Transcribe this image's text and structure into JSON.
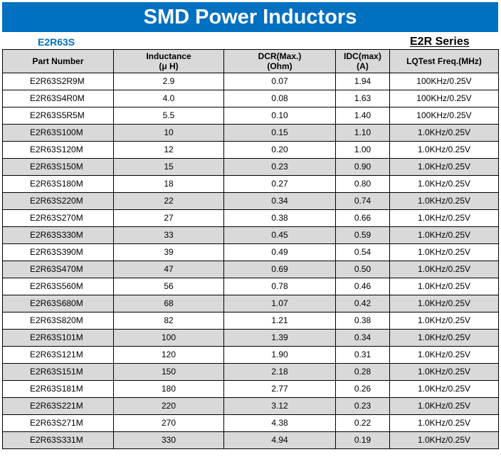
{
  "title": "SMD Power Inductors",
  "model": "E2R63S",
  "series": "E2R Series",
  "columns": [
    {
      "line1": "Part Number",
      "line2": ""
    },
    {
      "line1": "Inductance",
      "line2": "(μ H)"
    },
    {
      "line1": "DCR(Max.)",
      "line2": "(Ohm)"
    },
    {
      "line1": "IDC(max)",
      "line2": "(A)"
    },
    {
      "line1": "LQTest Freq.(MHz)",
      "line2": ""
    }
  ],
  "rows": [
    {
      "part": "E2R63S2R9M",
      "inductance": "2.9",
      "dcr": "0.07",
      "idc": "1.94",
      "freq": "100KHz/0.25V"
    },
    {
      "part": "E2R63S4R0M",
      "inductance": "4.0",
      "dcr": "0.08",
      "idc": "1.63",
      "freq": "100KHz/0.25V"
    },
    {
      "part": "E2R63S5R5M",
      "inductance": "5.5",
      "dcr": "0.10",
      "idc": "1.40",
      "freq": "100KHz/0.25V"
    },
    {
      "part": "E2R63S100M",
      "inductance": "10",
      "dcr": "0.15",
      "idc": "1.10",
      "freq": "1.0KHz/0.25V"
    },
    {
      "part": "E2R63S120M",
      "inductance": "12",
      "dcr": "0.20",
      "idc": "1.00",
      "freq": "1.0KHz/0.25V"
    },
    {
      "part": "E2R63S150M",
      "inductance": "15",
      "dcr": "0.23",
      "idc": "0.90",
      "freq": "1.0KHz/0.25V"
    },
    {
      "part": "E2R63S180M",
      "inductance": "18",
      "dcr": "0.27",
      "idc": "0.80",
      "freq": "1.0KHz/0.25V"
    },
    {
      "part": "E2R63S220M",
      "inductance": "22",
      "dcr": "0.34",
      "idc": "0.74",
      "freq": "1.0KHz/0.25V"
    },
    {
      "part": "E2R63S270M",
      "inductance": "27",
      "dcr": "0.38",
      "idc": "0.66",
      "freq": "1.0KHz/0.25V"
    },
    {
      "part": "E2R63S330M",
      "inductance": "33",
      "dcr": "0.45",
      "idc": "0.59",
      "freq": "1.0KHz/0.25V"
    },
    {
      "part": "E2R63S390M",
      "inductance": "39",
      "dcr": "0.49",
      "idc": "0.54",
      "freq": "1.0KHz/0.25V"
    },
    {
      "part": "E2R63S470M",
      "inductance": "47",
      "dcr": "0.69",
      "idc": "0.50",
      "freq": "1.0KHz/0.25V"
    },
    {
      "part": "E2R63S560M",
      "inductance": "56",
      "dcr": "0.78",
      "idc": "0.46",
      "freq": "1.0KHz/0.25V"
    },
    {
      "part": "E2R63S680M",
      "inductance": "68",
      "dcr": "1.07",
      "idc": "0.42",
      "freq": "1.0KHz/0.25V"
    },
    {
      "part": "E2R63S820M",
      "inductance": "82",
      "dcr": "1.21",
      "idc": "0.38",
      "freq": "1.0KHz/0.25V"
    },
    {
      "part": "E2R63S101M",
      "inductance": "100",
      "dcr": "1.39",
      "idc": "0.34",
      "freq": "1.0KHz/0.25V"
    },
    {
      "part": "E2R63S121M",
      "inductance": "120",
      "dcr": "1.90",
      "idc": "0.31",
      "freq": "1.0KHz/0.25V"
    },
    {
      "part": "E2R63S151M",
      "inductance": "150",
      "dcr": "2.18",
      "idc": "0.28",
      "freq": "1.0KHz/0.25V"
    },
    {
      "part": "E2R63S181M",
      "inductance": "180",
      "dcr": "2.77",
      "idc": "0.26",
      "freq": "1.0KHz/0.25V"
    },
    {
      "part": "E2R63S221M",
      "inductance": "220",
      "dcr": "3.12",
      "idc": "0.23",
      "freq": "1.0KHz/0.25V"
    },
    {
      "part": "E2R63S271M",
      "inductance": "270",
      "dcr": "4.38",
      "idc": "0.22",
      "freq": "1.0KHz/0.25V"
    },
    {
      "part": "E2R63S331M",
      "inductance": "330",
      "dcr": "4.94",
      "idc": "0.19",
      "freq": "1.0KHz/0.25V"
    }
  ],
  "shaded_rows": [
    3,
    5,
    7,
    9,
    11,
    13,
    15,
    17,
    19,
    21
  ],
  "colors": {
    "banner": "#0070c0",
    "model_text": "#0070c0",
    "shade": "#d9d9d9"
  }
}
